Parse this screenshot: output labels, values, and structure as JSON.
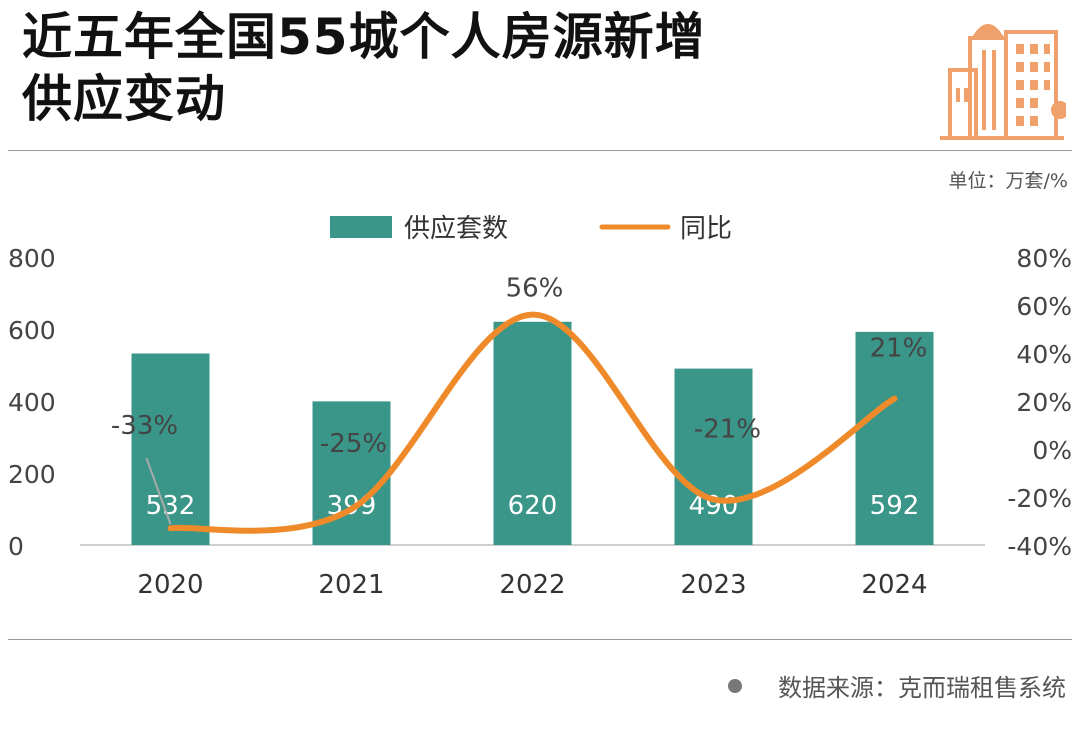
{
  "header": {
    "title_line1": "近五年全国55城个人房源新增",
    "title_line2": "供应变动"
  },
  "unit_label": "单位：万套/%",
  "source_label": "数据来源：克而瑞租售系统",
  "chart_data": {
    "type": "bar",
    "categories": [
      "2020",
      "2021",
      "2022",
      "2023",
      "2024"
    ],
    "series": [
      {
        "name": "供应套数",
        "type": "bar",
        "axis": "left",
        "values": [
          532,
          399,
          620,
          490,
          592
        ],
        "labels": [
          "532",
          "399",
          "620",
          "490",
          "592"
        ],
        "color": "#3a9688"
      },
      {
        "name": "同比",
        "type": "line",
        "axis": "right",
        "values": [
          -33,
          -25,
          56,
          -21,
          21
        ],
        "labels": [
          "-33%",
          "-25%",
          "56%",
          "-21%",
          "21%"
        ],
        "color": "#ef8a2a"
      }
    ],
    "left_axis": {
      "ylim": [
        0,
        800
      ],
      "ticks": [
        "0",
        "200",
        "400",
        "600",
        "800"
      ],
      "tick_values": [
        0,
        200,
        400,
        600,
        800
      ]
    },
    "right_axis": {
      "ylim": [
        -40,
        80
      ],
      "ticks": [
        "-40%",
        "-20%",
        "0%",
        "20%",
        "40%",
        "60%",
        "80%"
      ],
      "tick_values": [
        -40,
        -20,
        0,
        20,
        40,
        60,
        80
      ]
    },
    "legend_position": "top-center",
    "grid": false
  },
  "colors": {
    "bar": "#3a9688",
    "line": "#ef8a2a",
    "logo": "#f0a06a"
  },
  "icons": {
    "logo": "city-buildings-icon"
  }
}
